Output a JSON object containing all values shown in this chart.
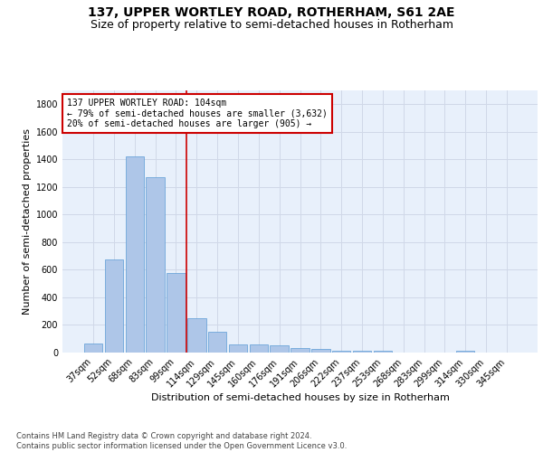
{
  "title": "137, UPPER WORTLEY ROAD, ROTHERHAM, S61 2AE",
  "subtitle": "Size of property relative to semi-detached houses in Rotherham",
  "xlabel": "Distribution of semi-detached houses by size in Rotherham",
  "ylabel": "Number of semi-detached properties",
  "categories": [
    "37sqm",
    "52sqm",
    "68sqm",
    "83sqm",
    "99sqm",
    "114sqm",
    "129sqm",
    "145sqm",
    "160sqm",
    "176sqm",
    "191sqm",
    "206sqm",
    "222sqm",
    "237sqm",
    "253sqm",
    "268sqm",
    "283sqm",
    "299sqm",
    "314sqm",
    "330sqm",
    "345sqm"
  ],
  "values": [
    65,
    675,
    1420,
    1270,
    575,
    250,
    150,
    62,
    58,
    50,
    30,
    25,
    15,
    15,
    12,
    0,
    0,
    0,
    15,
    0,
    0
  ],
  "bar_color": "#aec6e8",
  "bar_edge_color": "#5b9bd5",
  "grid_color": "#d0d8e8",
  "background_color": "#e8f0fb",
  "vline_x": 4.5,
  "vline_color": "#cc0000",
  "annotation_text": "137 UPPER WORTLEY ROAD: 104sqm\n← 79% of semi-detached houses are smaller (3,632)\n20% of semi-detached houses are larger (905) →",
  "annotation_box_color": "#ffffff",
  "annotation_box_edge_color": "#cc0000",
  "ylim": [
    0,
    1900
  ],
  "yticks": [
    0,
    200,
    400,
    600,
    800,
    1000,
    1200,
    1400,
    1600,
    1800
  ],
  "footer_text": "Contains HM Land Registry data © Crown copyright and database right 2024.\nContains public sector information licensed under the Open Government Licence v3.0.",
  "title_fontsize": 10,
  "subtitle_fontsize": 9,
  "xlabel_fontsize": 8,
  "ylabel_fontsize": 8,
  "tick_fontsize": 7,
  "annotation_fontsize": 7,
  "footer_fontsize": 6
}
